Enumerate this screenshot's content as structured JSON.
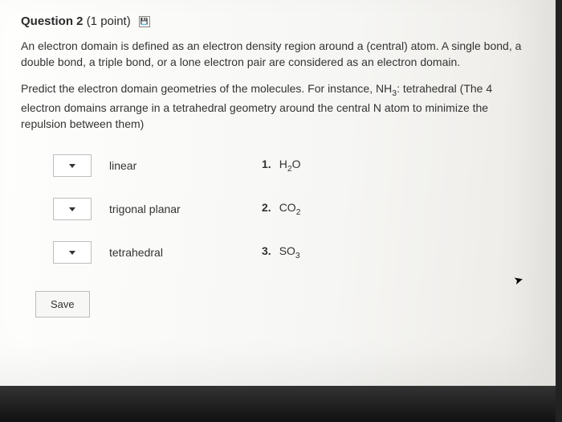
{
  "header": {
    "title": "Question 2",
    "points": "(1 point)"
  },
  "paragraphs": {
    "p1": "An electron domain is defined as an electron density region around a (central) atom. A single bond, a double bond, a triple bond, or a lone electron pair are considered as an electron domain.",
    "p2a": "Predict the electron domain geometries of the molecules. For instance, NH",
    "p2sub": "3",
    "p2b": ": tetrahedral (The 4 electron domains arrange in a tetrahedral geometry around the central N atom to minimize the repulsion between them)"
  },
  "rows": [
    {
      "geometry": "linear",
      "num": "1.",
      "mol_a": "H",
      "mol_sub": "2",
      "mol_b": "O"
    },
    {
      "geometry": "trigonal planar",
      "num": "2.",
      "mol_a": "CO",
      "mol_sub": "2",
      "mol_b": ""
    },
    {
      "geometry": "tetrahedral",
      "num": "3.",
      "mol_a": "SO",
      "mol_sub": "3",
      "mol_b": ""
    }
  ],
  "save_label": "Save"
}
